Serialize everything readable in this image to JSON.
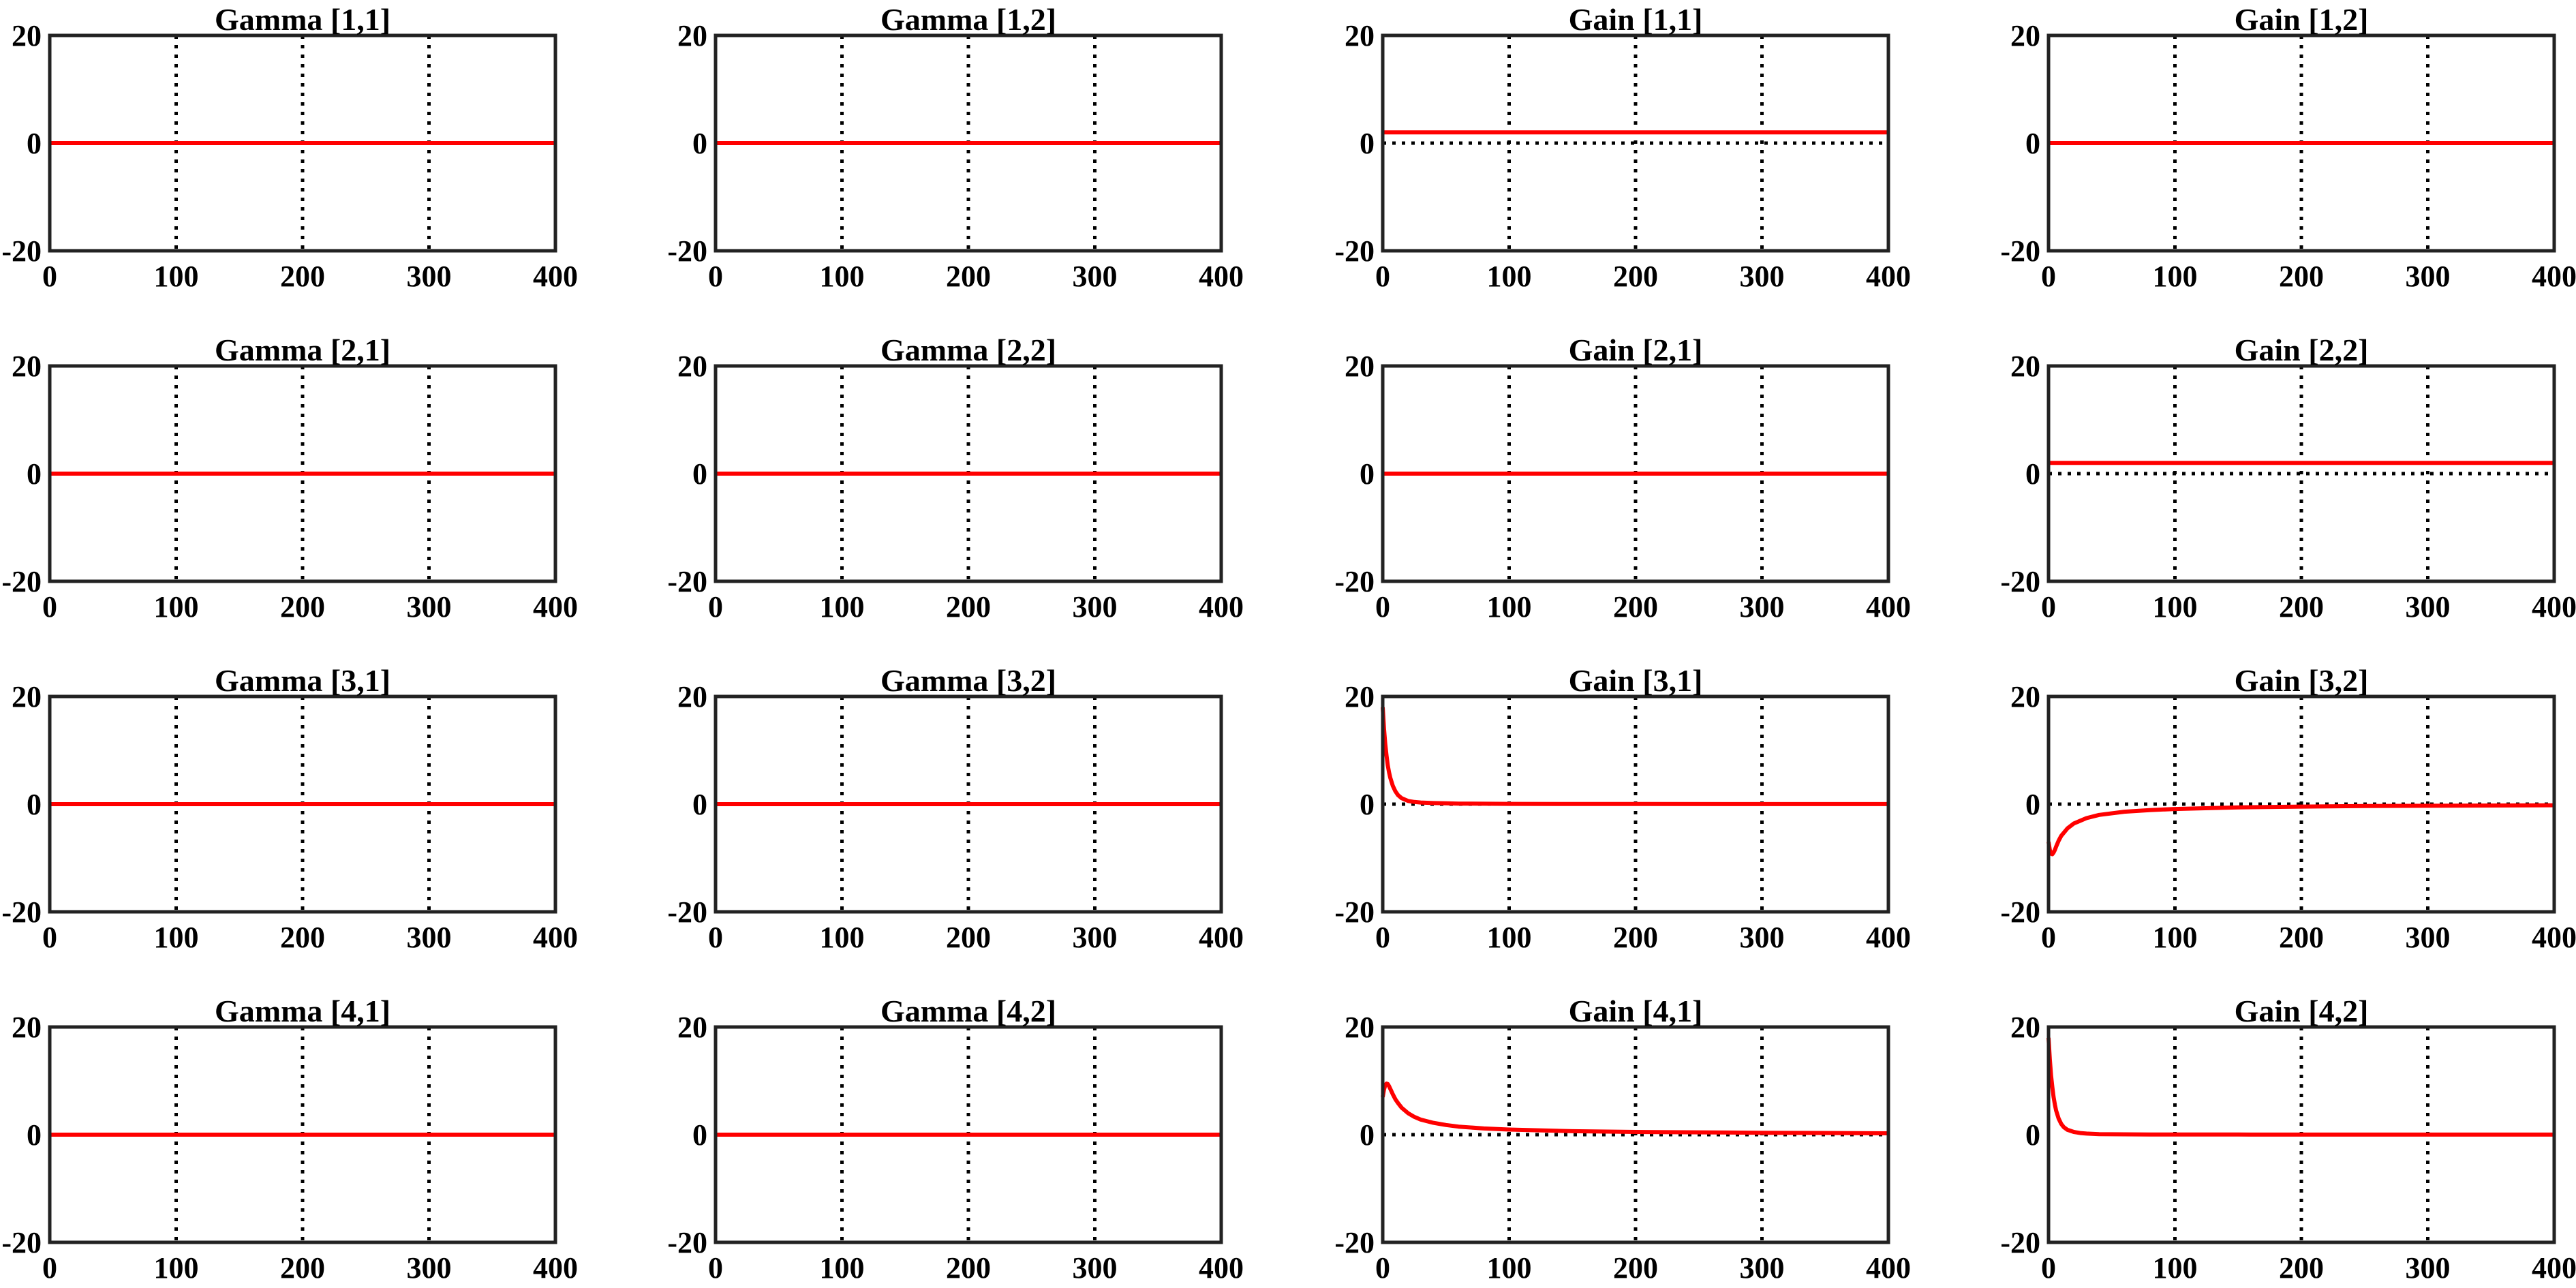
{
  "figure": {
    "background": "#ffffff",
    "line_color": "#ff0000",
    "axis_color": "#222222",
    "grid_color": "#000000"
  },
  "chart_data": [
    {
      "type": "line",
      "title": "Gamma [1,1]",
      "xlim": [
        0,
        400
      ],
      "ylim": [
        -20,
        20
      ],
      "xticks": [
        "0",
        "100",
        "200",
        "300",
        "400"
      ],
      "yticks": [
        "20",
        "0",
        "-20"
      ],
      "grid": "x-dotted",
      "zero_line": false,
      "series": [
        {
          "x": [
            0,
            400
          ],
          "y": [
            0,
            0
          ]
        }
      ]
    },
    {
      "type": "line",
      "title": "Gamma [1,2]",
      "xlim": [
        0,
        400
      ],
      "ylim": [
        -20,
        20
      ],
      "xticks": [
        "0",
        "100",
        "200",
        "300",
        "400"
      ],
      "yticks": [
        "20",
        "0",
        "-20"
      ],
      "grid": "x-dotted",
      "zero_line": false,
      "series": [
        {
          "x": [
            0,
            400
          ],
          "y": [
            0,
            0
          ]
        }
      ]
    },
    {
      "type": "line",
      "title": "Gain [1,1]",
      "xlim": [
        0,
        400
      ],
      "ylim": [
        -20,
        20
      ],
      "xticks": [
        "0",
        "100",
        "200",
        "300",
        "400"
      ],
      "yticks": [
        "20",
        "0",
        "-20"
      ],
      "grid": "x-dotted",
      "zero_line": true,
      "series": [
        {
          "x": [
            0,
            400
          ],
          "y": [
            2,
            2
          ]
        }
      ]
    },
    {
      "type": "line",
      "title": "Gain [1,2]",
      "xlim": [
        0,
        400
      ],
      "ylim": [
        -20,
        20
      ],
      "xticks": [
        "0",
        "100",
        "200",
        "300",
        "400"
      ],
      "yticks": [
        "20",
        "0",
        "-20"
      ],
      "grid": "x-dotted",
      "zero_line": false,
      "series": [
        {
          "x": [
            0,
            400
          ],
          "y": [
            0,
            0
          ]
        }
      ]
    },
    {
      "type": "line",
      "title": "Gamma [2,1]",
      "xlim": [
        0,
        400
      ],
      "ylim": [
        -20,
        20
      ],
      "xticks": [
        "0",
        "100",
        "200",
        "300",
        "400"
      ],
      "yticks": [
        "20",
        "0",
        "-20"
      ],
      "grid": "x-dotted",
      "zero_line": false,
      "series": [
        {
          "x": [
            0,
            400
          ],
          "y": [
            0,
            0
          ]
        }
      ]
    },
    {
      "type": "line",
      "title": "Gamma [2,2]",
      "xlim": [
        0,
        400
      ],
      "ylim": [
        -20,
        20
      ],
      "xticks": [
        "0",
        "100",
        "200",
        "300",
        "400"
      ],
      "yticks": [
        "20",
        "0",
        "-20"
      ],
      "grid": "x-dotted",
      "zero_line": false,
      "series": [
        {
          "x": [
            0,
            400
          ],
          "y": [
            0,
            0
          ]
        }
      ]
    },
    {
      "type": "line",
      "title": "Gain [2,1]",
      "xlim": [
        0,
        400
      ],
      "ylim": [
        -20,
        20
      ],
      "xticks": [
        "0",
        "100",
        "200",
        "300",
        "400"
      ],
      "yticks": [
        "20",
        "0",
        "-20"
      ],
      "grid": "x-dotted",
      "zero_line": false,
      "series": [
        {
          "x": [
            0,
            400
          ],
          "y": [
            0,
            0
          ]
        }
      ]
    },
    {
      "type": "line",
      "title": "Gain [2,2]",
      "xlim": [
        0,
        400
      ],
      "ylim": [
        -20,
        20
      ],
      "xticks": [
        "0",
        "100",
        "200",
        "300",
        "400"
      ],
      "yticks": [
        "20",
        "0",
        "-20"
      ],
      "grid": "x-dotted",
      "zero_line": true,
      "series": [
        {
          "x": [
            0,
            400
          ],
          "y": [
            2,
            2
          ]
        }
      ]
    },
    {
      "type": "line",
      "title": "Gamma [3,1]",
      "xlim": [
        0,
        400
      ],
      "ylim": [
        -20,
        20
      ],
      "xticks": [
        "0",
        "100",
        "200",
        "300",
        "400"
      ],
      "yticks": [
        "20",
        "0",
        "-20"
      ],
      "grid": "x-dotted",
      "zero_line": false,
      "series": [
        {
          "x": [
            0,
            400
          ],
          "y": [
            0,
            0
          ]
        }
      ]
    },
    {
      "type": "line",
      "title": "Gamma [3,2]",
      "xlim": [
        0,
        400
      ],
      "ylim": [
        -20,
        20
      ],
      "xticks": [
        "0",
        "100",
        "200",
        "300",
        "400"
      ],
      "yticks": [
        "20",
        "0",
        "-20"
      ],
      "grid": "x-dotted",
      "zero_line": false,
      "series": [
        {
          "x": [
            0,
            400
          ],
          "y": [
            0,
            0
          ]
        }
      ]
    },
    {
      "type": "line",
      "title": "Gain [3,1]",
      "xlim": [
        0,
        400
      ],
      "ylim": [
        -20,
        20
      ],
      "xticks": [
        "0",
        "100",
        "200",
        "300",
        "400"
      ],
      "yticks": [
        "20",
        "0",
        "-20"
      ],
      "grid": "x-dotted",
      "zero_line": true,
      "series": [
        {
          "x": [
            0,
            1,
            2,
            3,
            4,
            5,
            6,
            8,
            10,
            12,
            15,
            20,
            25,
            30,
            40,
            50,
            60,
            80,
            100,
            150,
            200,
            300,
            400
          ],
          "y": [
            18,
            14,
            11.2,
            9,
            7.2,
            5.9,
            4.9,
            3.4,
            2.4,
            1.7,
            1.1,
            0.6,
            0.4,
            0.3,
            0.2,
            0.15,
            0.1,
            0.07,
            0.05,
            0.03,
            0.02,
            0.01,
            0.01
          ]
        }
      ]
    },
    {
      "type": "line",
      "title": "Gain [3,2]",
      "xlim": [
        0,
        400
      ],
      "ylim": [
        -20,
        20
      ],
      "xticks": [
        "0",
        "100",
        "200",
        "300",
        "400"
      ],
      "yticks": [
        "20",
        "0",
        "-20"
      ],
      "grid": "x-dotted",
      "zero_line": true,
      "series": [
        {
          "x": [
            0,
            1,
            2,
            3,
            4,
            5,
            6,
            8,
            10,
            15,
            20,
            30,
            40,
            60,
            80,
            100,
            150,
            200,
            250,
            300,
            350,
            400
          ],
          "y": [
            -7,
            -8.5,
            -9.2,
            -9.3,
            -9.0,
            -8.5,
            -7.9,
            -6.8,
            -5.9,
            -4.5,
            -3.6,
            -2.6,
            -2.0,
            -1.4,
            -1.1,
            -0.9,
            -0.6,
            -0.45,
            -0.35,
            -0.3,
            -0.25,
            -0.2
          ]
        }
      ]
    },
    {
      "type": "line",
      "title": "Gamma [4,1]",
      "xlim": [
        0,
        400
      ],
      "ylim": [
        -20,
        20
      ],
      "xticks": [
        "0",
        "100",
        "200",
        "300",
        "400"
      ],
      "yticks": [
        "20",
        "0",
        "-20"
      ],
      "grid": "x-dotted",
      "zero_line": false,
      "series": [
        {
          "x": [
            0,
            400
          ],
          "y": [
            0,
            0
          ]
        }
      ]
    },
    {
      "type": "line",
      "title": "Gamma [4,2]",
      "xlim": [
        0,
        400
      ],
      "ylim": [
        -20,
        20
      ],
      "xticks": [
        "0",
        "100",
        "200",
        "300",
        "400"
      ],
      "yticks": [
        "20",
        "0",
        "-20"
      ],
      "grid": "x-dotted",
      "zero_line": false,
      "series": [
        {
          "x": [
            0,
            400
          ],
          "y": [
            0,
            0
          ]
        }
      ]
    },
    {
      "type": "line",
      "title": "Gain [4,1]",
      "xlim": [
        0,
        400
      ],
      "ylim": [
        -20,
        20
      ],
      "xticks": [
        "0",
        "100",
        "200",
        "300",
        "400"
      ],
      "yticks": [
        "20",
        "0",
        "-20"
      ],
      "grid": "x-dotted",
      "zero_line": true,
      "series": [
        {
          "x": [
            0,
            1,
            2,
            3,
            4,
            5,
            6,
            7,
            8,
            10,
            12,
            15,
            20,
            25,
            30,
            40,
            50,
            60,
            80,
            100,
            150,
            200,
            300,
            400
          ],
          "y": [
            7,
            8.4,
            9.2,
            9.5,
            9.4,
            9.0,
            8.5,
            8.0,
            7.5,
            6.6,
            5.9,
            5.0,
            4.0,
            3.3,
            2.8,
            2.2,
            1.8,
            1.5,
            1.15,
            0.95,
            0.65,
            0.5,
            0.35,
            0.25
          ]
        }
      ]
    },
    {
      "type": "line",
      "title": "Gain [4,2]",
      "xlim": [
        0,
        400
      ],
      "ylim": [
        -20,
        20
      ],
      "xticks": [
        "0",
        "100",
        "200",
        "300",
        "400"
      ],
      "yticks": [
        "20",
        "0",
        "-20"
      ],
      "grid": "x-dotted",
      "zero_line": false,
      "series": [
        {
          "x": [
            0,
            1,
            2,
            3,
            4,
            5,
            6,
            8,
            10,
            12,
            15,
            20,
            25,
            30,
            40,
            50,
            60,
            80,
            100,
            150,
            200,
            300,
            400
          ],
          "y": [
            18,
            14,
            11,
            8.8,
            7,
            5.6,
            4.5,
            3,
            2,
            1.4,
            0.9,
            0.5,
            0.3,
            0.2,
            0.1,
            0.08,
            0.06,
            0.04,
            0.03,
            0.02,
            0.01,
            0.01,
            0.01
          ]
        }
      ]
    }
  ]
}
